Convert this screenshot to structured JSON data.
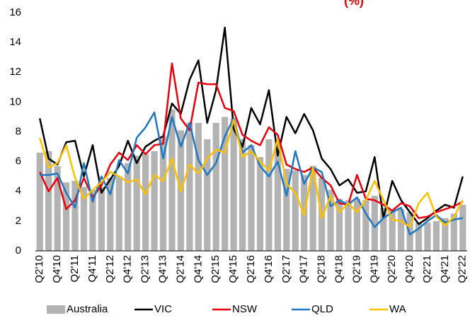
{
  "chart_data": {
    "type": "combo",
    "title": "(%)",
    "title_color": "#e00000",
    "categories": [
      "Q2'10",
      null,
      "Q4'10",
      null,
      "Q2'11",
      null,
      "Q4'11",
      null,
      "Q2'12",
      null,
      "Q4'12",
      null,
      "Q2'13",
      null,
      "Q4'13",
      null,
      "Q2'14",
      null,
      "Q4'14",
      null,
      "Q2'15",
      null,
      "Q4'15",
      null,
      "Q2'16",
      null,
      "Q4'16",
      null,
      "Q2'17",
      null,
      "Q4'17",
      null,
      "Q2'18",
      null,
      "Q4'18",
      null,
      "Q2'19",
      null,
      "Q4'19",
      null,
      "Q2'20",
      null,
      "Q4'20",
      null,
      "Q2'21",
      null,
      "Q4'21",
      null,
      "Q2'22"
    ],
    "series": [
      {
        "name": "Australia",
        "type": "bar",
        "color": "#b3b3b3",
        "values": [
          6.6,
          6.7,
          5.7,
          4.6,
          4.7,
          4.3,
          4.1,
          4.3,
          4.9,
          5.0,
          5.9,
          6.4,
          6.5,
          6.7,
          7.7,
          9.5,
          8.1,
          8.6,
          8.6,
          7.5,
          8.6,
          9.0,
          8.9,
          7.5,
          7.1,
          6.3,
          7.5,
          7.2,
          5.5,
          5.4,
          5.1,
          5.7,
          4.9,
          4.1,
          3.5,
          3.4,
          3.5,
          3.4,
          3.7,
          2.9,
          2.8,
          2.8,
          2.6,
          1.9,
          1.9,
          2.0,
          2.2,
          2.5,
          3.1
        ]
      },
      {
        "name": "VIC",
        "type": "line",
        "color": "#000000",
        "values": [
          8.9,
          6.2,
          5.8,
          7.3,
          7.4,
          5.0,
          7.1,
          3.9,
          4.8,
          5.7,
          7.4,
          5.9,
          7.0,
          7.4,
          7.7,
          9.9,
          9.2,
          11.5,
          12.8,
          8.6,
          10.8,
          15.0,
          8.2,
          7.0,
          9.6,
          8.5,
          10.8,
          6.4,
          9.0,
          7.9,
          9.2,
          8.1,
          6.2,
          5.5,
          4.4,
          4.8,
          3.9,
          4.0,
          6.3,
          2.2,
          4.7,
          3.4,
          2.6,
          1.8,
          2.2,
          2.7,
          3.1,
          2.9,
          5.0
        ]
      },
      {
        "name": "NSW",
        "type": "line",
        "color": "#e8000b",
        "values": [
          5.3,
          4.0,
          4.9,
          2.8,
          3.4,
          4.9,
          3.6,
          4.4,
          5.8,
          6.6,
          6.1,
          7.1,
          6.5,
          7.1,
          7.2,
          12.6,
          8.9,
          8.1,
          11.3,
          11.2,
          11.2,
          9.6,
          9.4,
          7.8,
          7.4,
          7.1,
          8.3,
          7.8,
          5.8,
          5.5,
          5.3,
          5.6,
          4.9,
          4.4,
          3.2,
          3.1,
          5.1,
          3.5,
          3.4,
          3.1,
          2.7,
          3.2,
          3.0,
          2.2,
          2.3,
          2.6,
          2.8,
          3.0,
          3.3
        ]
      },
      {
        "name": "QLD",
        "type": "line",
        "color": "#1f78c1",
        "values": [
          5.1,
          5.1,
          5.2,
          3.9,
          2.9,
          5.9,
          3.3,
          5.0,
          3.8,
          6.1,
          5.2,
          7.6,
          8.3,
          9.3,
          6.2,
          9.0,
          7.0,
          8.6,
          6.1,
          5.1,
          5.9,
          7.7,
          8.9,
          6.6,
          7.1,
          5.7,
          5.0,
          6.0,
          3.7,
          6.7,
          4.5,
          5.6,
          5.3,
          3.0,
          3.4,
          3.1,
          3.6,
          2.5,
          1.6,
          2.2,
          2.6,
          2.9,
          1.1,
          1.5,
          2.0,
          2.4,
          1.9,
          2.1,
          2.2
        ]
      },
      {
        "name": "WA",
        "type": "line",
        "color": "#ffc000",
        "values": [
          7.6,
          5.6,
          5.9,
          7.1,
          4.9,
          3.5,
          4.1,
          4.6,
          5.3,
          5.0,
          4.6,
          4.8,
          3.8,
          5.1,
          4.7,
          6.2,
          4.0,
          5.8,
          5.2,
          6.2,
          6.8,
          6.6,
          8.8,
          6.3,
          6.7,
          6.0,
          5.4,
          7.5,
          4.5,
          3.9,
          2.4,
          5.6,
          2.2,
          3.7,
          2.6,
          3.2,
          2.6,
          3.4,
          4.7,
          3.4,
          2.1,
          2.0,
          1.6,
          3.2,
          3.9,
          2.3,
          1.7,
          2.3,
          3.4
        ]
      }
    ],
    "ylim": [
      0,
      16
    ],
    "yticks": [
      0,
      2,
      4,
      6,
      8,
      10,
      12,
      14,
      16
    ],
    "grid": false,
    "legend": "bottom"
  }
}
